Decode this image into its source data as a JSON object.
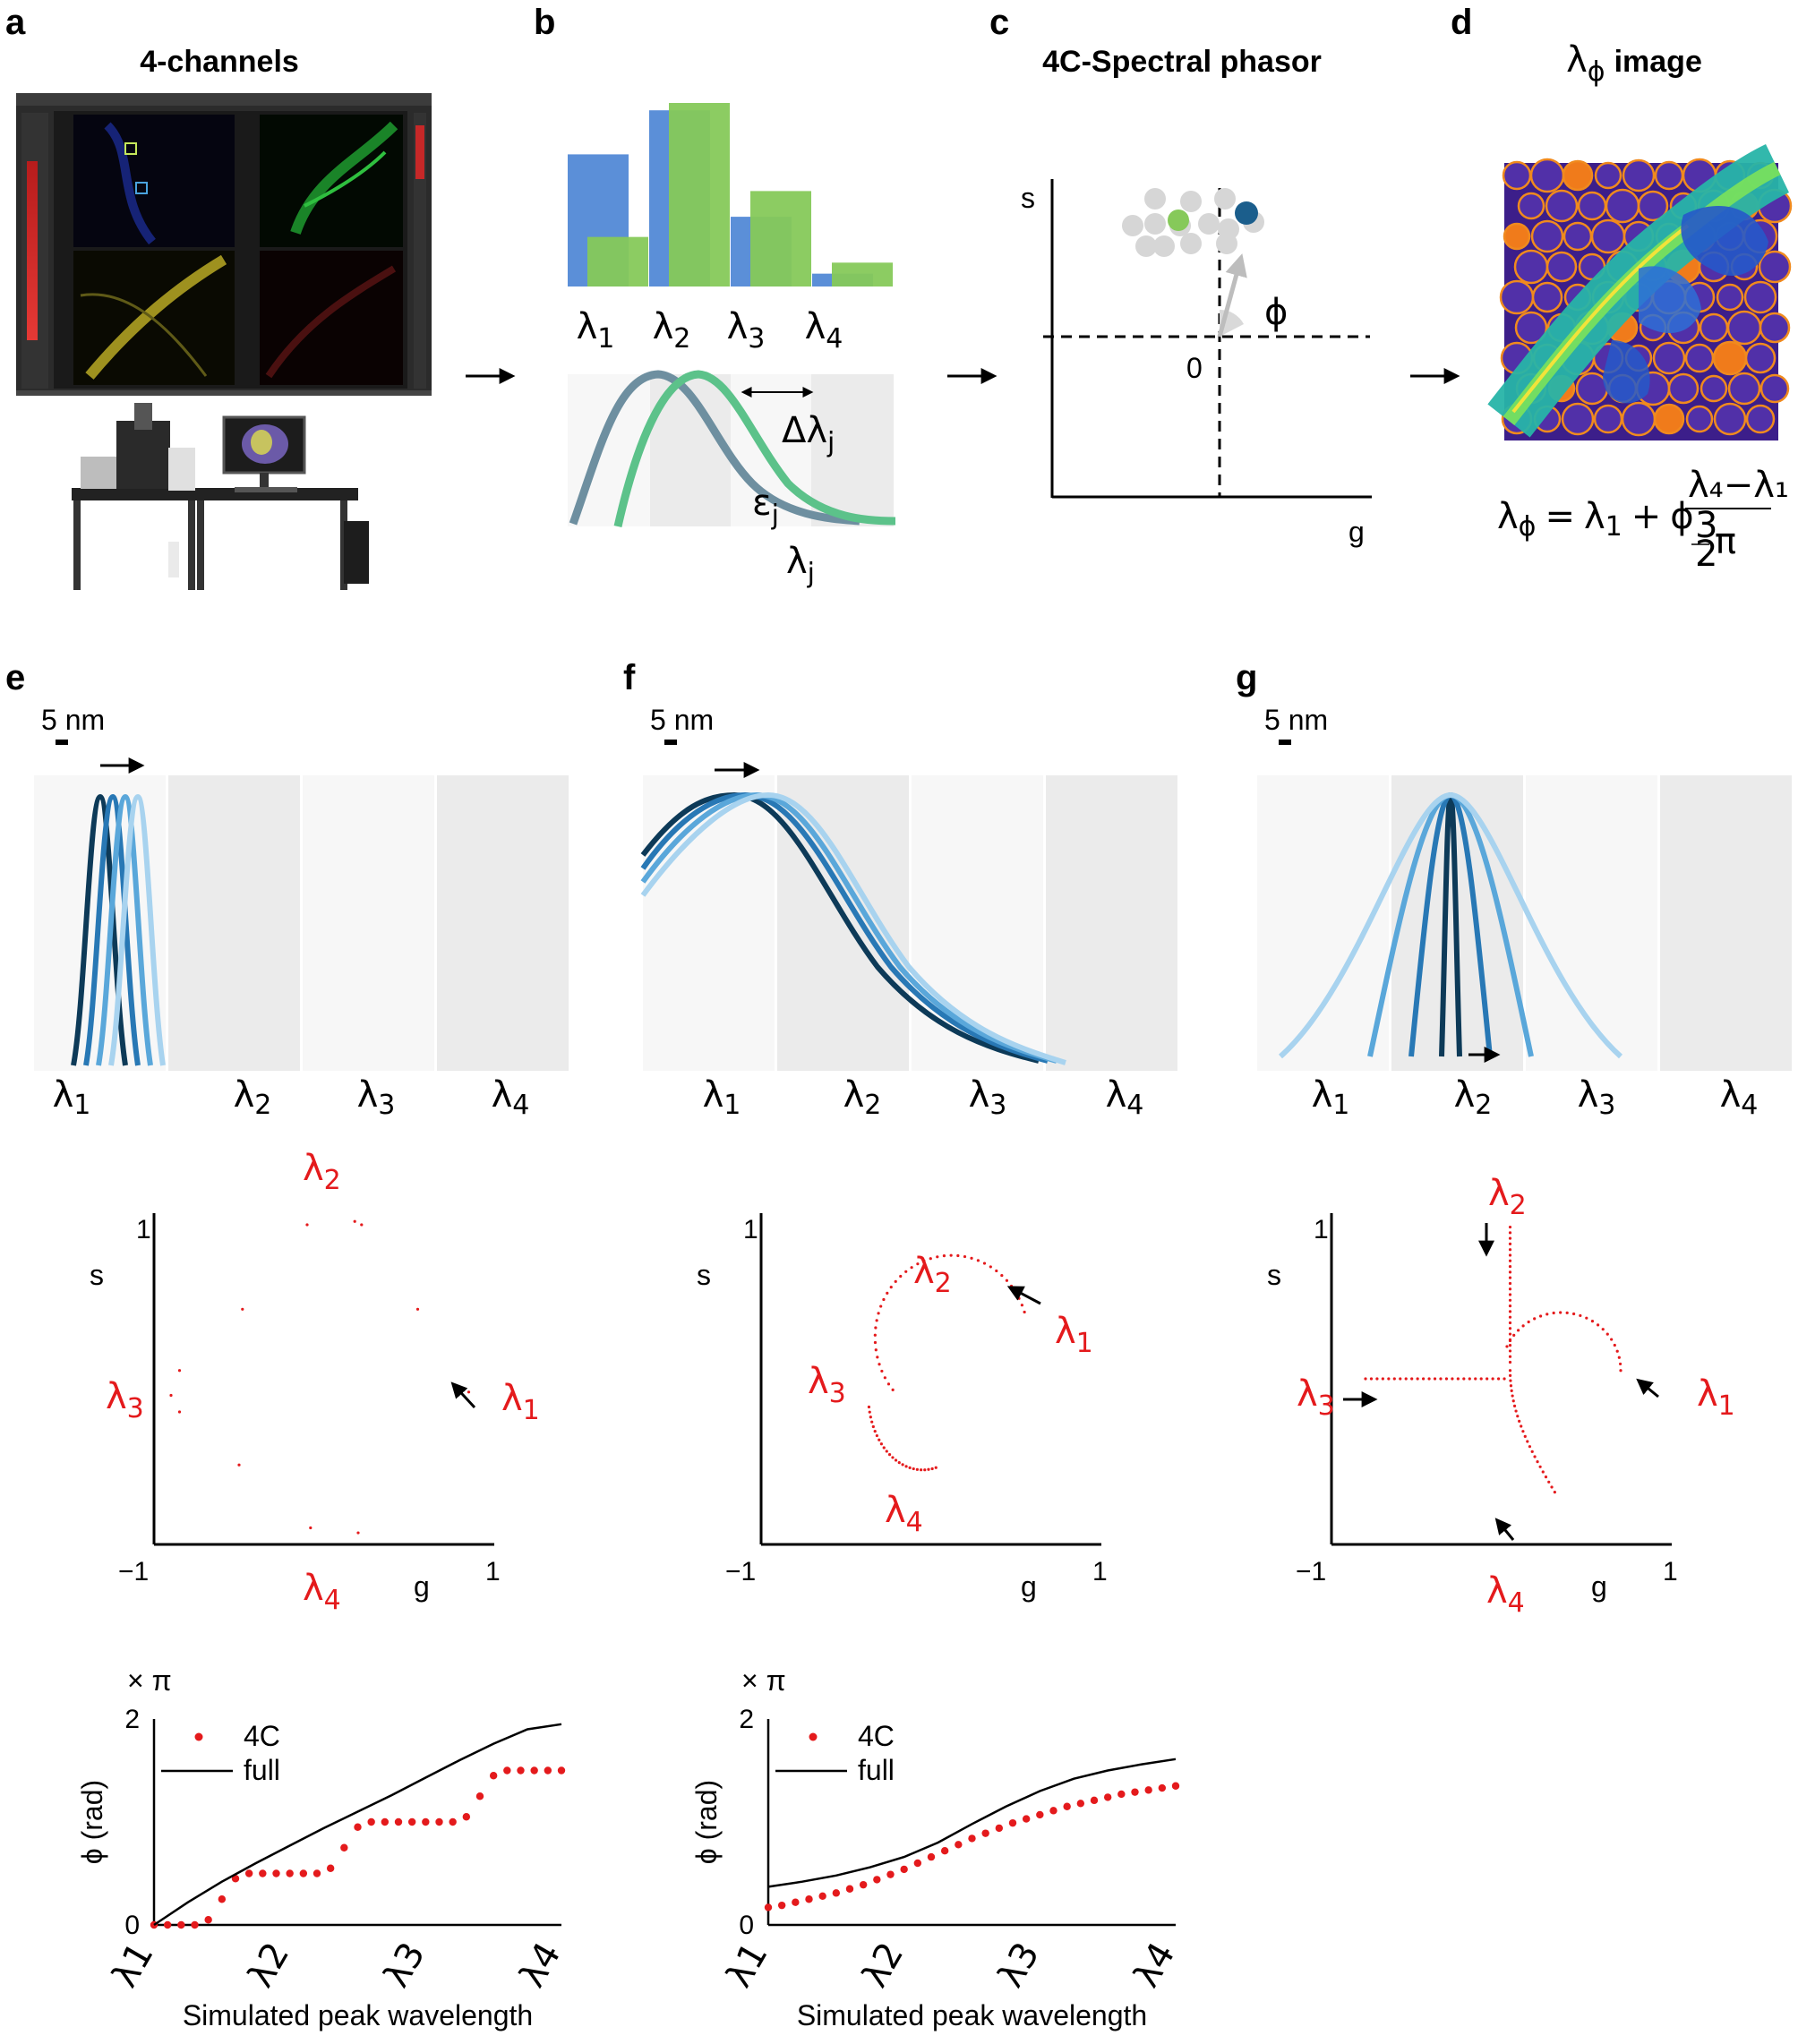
{
  "figure": {
    "panel_labels": [
      "a",
      "b",
      "c",
      "d",
      "e",
      "f",
      "g"
    ],
    "panel_a": {
      "title": "4-channels",
      "photos": [
        "microscope-software-screenshot",
        "confocal-microscope-setup"
      ]
    },
    "panel_b": {
      "bars": {
        "categories": [
          "λ1",
          "λ2",
          "λ3",
          "λ4"
        ],
        "series": [
          {
            "color": "#5b8fd8",
            "values": [
              0.72,
              0.96,
              0.38,
              0.07
            ]
          },
          {
            "color": "#86c95a",
            "values": [
              0.27,
              1.0,
              0.52,
              0.13
            ]
          }
        ]
      },
      "channel_labels": [
        "λ1",
        "λ2",
        "λ3",
        "λ4"
      ],
      "curve_labels": {
        "delta": "Δλ",
        "delta_sub": "j",
        "eps": "ε",
        "eps_sub": "j",
        "lam": "λ",
        "lam_sub": "j"
      }
    },
    "panel_c": {
      "title": "4C-Spectral phasor",
      "axis_s": "s",
      "axis_g": "g",
      "origin": "0",
      "angle": "ϕ",
      "colors": {
        "green": "#86c95a",
        "blue": "#1b5e8c",
        "grey": "#d6d6d6"
      }
    },
    "panel_d": {
      "title_sym": "λ",
      "title_sub": "ϕ",
      "title_rest": "image",
      "formula": {
        "lhs": "λ",
        "lhs_sub": "ϕ",
        "eq": "=",
        "l1": "λ",
        "l1_sub": "1",
        "plus": "+",
        "phi": "ϕ",
        "num": "λ₄−λ₁",
        "den_num": "3",
        "den_den": "2",
        "pi": "π"
      }
    },
    "spectra_labels": [
      "λ",
      "λ",
      "λ",
      "λ"
    ],
    "spectra_subs": [
      "1",
      "2",
      "3",
      "4"
    ],
    "scale_bar": "5 nm",
    "phasor_axes": {
      "s": "s",
      "g": "g",
      "one": "1",
      "minus_one": "−1"
    },
    "phasor_labels": {
      "sym": "λ",
      "subs": [
        "1",
        "2",
        "3",
        "4"
      ]
    },
    "colors": {
      "red": "#e41a1c",
      "blues": [
        "#0d3a58",
        "#2878b5",
        "#5aa7da",
        "#a8d3ef"
      ],
      "bg_light": "#f7f7f7",
      "bg_dark": "#ebebeb"
    }
  },
  "chart_data": [
    {
      "type": "line",
      "panel": "e-bottom",
      "unit_label": "× π",
      "ylabel": "ϕ (rad)",
      "xlabel": "Simulated peak wavelength",
      "x_ticks": [
        "λ1",
        "λ2",
        "λ3",
        "λ4"
      ],
      "y_ticks": [
        "0",
        "2"
      ],
      "ylim": [
        0,
        2
      ],
      "xlim": [
        0,
        3
      ],
      "legend": {
        "position": "top-left",
        "entries": [
          "4C",
          "full"
        ]
      },
      "series": [
        {
          "name": "4C",
          "style": "dots",
          "color": "#e41a1c",
          "x": [
            0,
            0.1,
            0.2,
            0.3,
            0.4,
            0.5,
            0.6,
            0.7,
            0.8,
            0.9,
            1.0,
            1.1,
            1.2,
            1.3,
            1.4,
            1.5,
            1.6,
            1.7,
            1.8,
            1.9,
            2.0,
            2.1,
            2.2,
            2.3,
            2.4,
            2.5,
            2.6,
            2.7,
            2.8,
            2.9,
            3.0
          ],
          "y": [
            0.0,
            0.0,
            0.0,
            0.0,
            0.05,
            0.25,
            0.45,
            0.5,
            0.5,
            0.5,
            0.5,
            0.5,
            0.5,
            0.55,
            0.75,
            0.95,
            1.0,
            1.0,
            1.0,
            1.0,
            1.0,
            1.0,
            1.0,
            1.05,
            1.25,
            1.45,
            1.5,
            1.5,
            1.5,
            1.5,
            1.5
          ]
        },
        {
          "name": "full",
          "style": "line",
          "color": "#000000",
          "x": [
            0,
            0.25,
            0.5,
            0.75,
            1.0,
            1.25,
            1.5,
            1.75,
            2.0,
            2.25,
            2.5,
            2.75,
            3.0
          ],
          "y": [
            0.0,
            0.22,
            0.42,
            0.6,
            0.77,
            0.94,
            1.1,
            1.26,
            1.43,
            1.6,
            1.76,
            1.9,
            1.95
          ]
        }
      ]
    },
    {
      "type": "line",
      "panel": "f-bottom",
      "unit_label": "× π",
      "ylabel": "ϕ (rad)",
      "xlabel": "Simulated peak wavelength",
      "x_ticks": [
        "λ1",
        "λ2",
        "λ3",
        "λ4"
      ],
      "y_ticks": [
        "0",
        "2"
      ],
      "ylim": [
        0,
        2
      ],
      "xlim": [
        0,
        3
      ],
      "legend": {
        "position": "top-left",
        "entries": [
          "4C",
          "full"
        ]
      },
      "series": [
        {
          "name": "4C",
          "style": "dots",
          "color": "#e41a1c",
          "x": [
            0,
            0.1,
            0.2,
            0.3,
            0.4,
            0.5,
            0.6,
            0.7,
            0.8,
            0.9,
            1.0,
            1.1,
            1.2,
            1.3,
            1.4,
            1.5,
            1.6,
            1.7,
            1.8,
            1.9,
            2.0,
            2.1,
            2.2,
            2.3,
            2.4,
            2.5,
            2.6,
            2.7,
            2.8,
            2.9,
            3.0
          ],
          "y": [
            0.17,
            0.19,
            0.22,
            0.25,
            0.28,
            0.31,
            0.35,
            0.39,
            0.44,
            0.49,
            0.54,
            0.6,
            0.66,
            0.72,
            0.78,
            0.84,
            0.89,
            0.94,
            0.99,
            1.03,
            1.07,
            1.11,
            1.15,
            1.18,
            1.21,
            1.24,
            1.27,
            1.29,
            1.31,
            1.33,
            1.35
          ]
        },
        {
          "name": "full",
          "style": "line",
          "color": "#000000",
          "x": [
            0,
            0.25,
            0.5,
            0.75,
            1.0,
            1.25,
            1.5,
            1.75,
            2.0,
            2.25,
            2.5,
            2.75,
            3.0
          ],
          "y": [
            0.37,
            0.42,
            0.48,
            0.56,
            0.66,
            0.8,
            0.98,
            1.15,
            1.3,
            1.42,
            1.5,
            1.56,
            1.61
          ]
        }
      ]
    }
  ]
}
